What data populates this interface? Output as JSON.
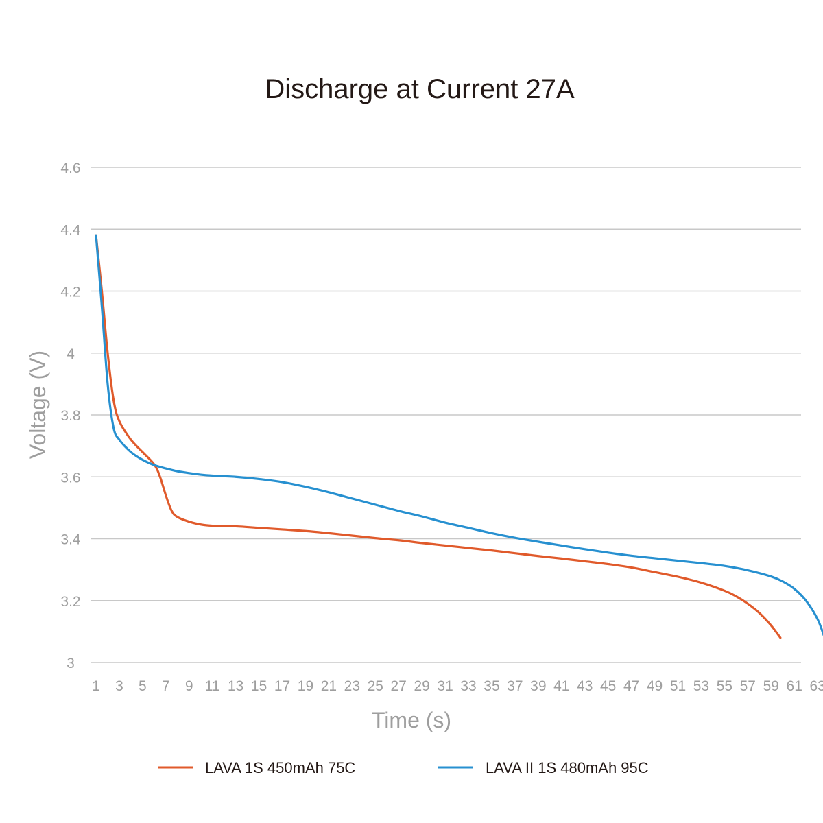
{
  "chart_data": {
    "type": "line",
    "title": "Discharge at Current 27A",
    "xlabel": "Time (s)",
    "ylabel": "Voltage (V)",
    "xlim": [
      1,
      64
    ],
    "ylim": [
      3,
      4.6
    ],
    "x_ticks": [
      "1",
      "3",
      "5",
      "7",
      "9",
      "11",
      "13",
      "15",
      "17",
      "19",
      "21",
      "23",
      "25",
      "27",
      "29",
      "31",
      "33",
      "35",
      "37",
      "39",
      "41",
      "43",
      "45",
      "47",
      "49",
      "51",
      "53",
      "55",
      "57",
      "59",
      "61",
      "63"
    ],
    "y_ticks": [
      "3",
      "3.2",
      "3.4",
      "3.6",
      "3.8",
      "4",
      "4.2",
      "4.4",
      "4.6"
    ],
    "grid": true,
    "legend_position": "bottom",
    "series": [
      {
        "name": "LAVA 1S 450mAh 75C",
        "color": "#e05a2b",
        "x": [
          1,
          1.5,
          2,
          2.5,
          3,
          4,
          5,
          6,
          6.5,
          7,
          7.5,
          8,
          9,
          10,
          11,
          13,
          15,
          17,
          19,
          21,
          23,
          25,
          27,
          29,
          31,
          33,
          35,
          37,
          39,
          41,
          43,
          45,
          47,
          49,
          51,
          53,
          55,
          56,
          57,
          58,
          59,
          59.8
        ],
        "y": [
          4.38,
          4.2,
          4.0,
          3.85,
          3.78,
          3.72,
          3.68,
          3.64,
          3.6,
          3.54,
          3.49,
          3.47,
          3.455,
          3.446,
          3.442,
          3.44,
          3.435,
          3.43,
          3.425,
          3.418,
          3.41,
          3.402,
          3.395,
          3.386,
          3.378,
          3.37,
          3.362,
          3.353,
          3.344,
          3.336,
          3.327,
          3.318,
          3.307,
          3.292,
          3.277,
          3.258,
          3.232,
          3.214,
          3.19,
          3.16,
          3.12,
          3.08
        ]
      },
      {
        "name": "LAVA II 1S 480mAh 95C",
        "color": "#2790d0",
        "x": [
          1,
          1.5,
          2,
          2.5,
          3,
          4,
          5,
          6,
          7,
          8,
          9,
          10,
          11,
          13,
          15,
          17,
          19,
          21,
          23,
          25,
          27,
          29,
          31,
          33,
          35,
          37,
          39,
          41,
          43,
          45,
          47,
          49,
          51,
          53,
          55,
          57,
          59,
          60,
          61,
          62,
          63,
          63.6
        ],
        "y": [
          4.38,
          4.15,
          3.9,
          3.76,
          3.72,
          3.68,
          3.655,
          3.638,
          3.627,
          3.618,
          3.612,
          3.607,
          3.604,
          3.6,
          3.593,
          3.583,
          3.568,
          3.55,
          3.53,
          3.51,
          3.49,
          3.472,
          3.452,
          3.435,
          3.418,
          3.403,
          3.39,
          3.378,
          3.366,
          3.355,
          3.345,
          3.337,
          3.329,
          3.321,
          3.312,
          3.298,
          3.278,
          3.262,
          3.238,
          3.2,
          3.14,
          3.08
        ]
      }
    ]
  }
}
